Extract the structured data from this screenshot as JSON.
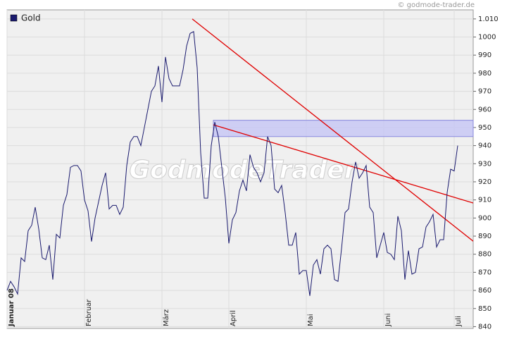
{
  "chart_data": {
    "type": "line",
    "legend": "top-left",
    "source": "© godmode-trader.de",
    "watermark": "GodmodeTrader",
    "grid": true,
    "categories": [
      "Januar 08",
      null,
      null,
      null,
      null,
      null,
      null,
      null,
      null,
      null,
      null,
      null,
      null,
      null,
      null,
      null,
      null,
      null,
      null,
      null,
      null,
      null,
      "Februar",
      null,
      null,
      null,
      null,
      null,
      null,
      null,
      null,
      null,
      null,
      null,
      null,
      null,
      null,
      null,
      null,
      null,
      null,
      null,
      null,
      null,
      "März",
      null,
      null,
      null,
      null,
      null,
      null,
      null,
      null,
      null,
      null,
      null,
      null,
      null,
      null,
      null,
      null,
      null,
      null,
      "April",
      null,
      null,
      null,
      null,
      null,
      null,
      null,
      null,
      null,
      null,
      null,
      null,
      null,
      null,
      null,
      null,
      null,
      null,
      null,
      null,
      null,
      "Mai",
      null,
      null,
      null,
      null,
      null,
      null,
      null,
      null,
      null,
      null,
      null,
      null,
      null,
      null,
      null,
      null,
      null,
      null,
      null,
      null,
      null,
      "Juni",
      null,
      null,
      null,
      null,
      null,
      null,
      null,
      null,
      null,
      null,
      null,
      null,
      null,
      null,
      null,
      null,
      null,
      null,
      null,
      "Juli",
      null
    ],
    "series": [
      {
        "name": "Gold",
        "color": "#1a1a6e",
        "values": [
          860,
          865,
          862,
          858,
          878,
          876,
          893,
          896,
          906,
          894,
          878,
          877,
          885,
          866,
          891,
          889,
          907,
          913,
          928,
          929,
          929,
          926,
          910,
          904,
          887,
          900,
          909,
          918,
          925,
          905,
          907,
          907,
          902,
          906,
          929,
          942,
          945,
          945,
          940,
          950,
          960,
          970,
          973,
          984,
          964,
          989,
          977,
          973,
          973,
          973,
          982,
          995,
          1002,
          1003,
          983,
          936,
          911,
          911,
          940,
          953,
          945,
          928,
          911,
          886,
          899,
          903,
          915,
          921,
          915,
          935,
          928,
          925,
          920,
          925,
          945,
          940,
          916,
          914,
          918,
          903,
          885,
          885,
          892,
          869,
          871,
          871,
          857,
          874,
          877,
          869,
          883,
          885,
          883,
          866,
          865,
          883,
          903,
          905,
          920,
          931,
          922,
          925,
          929,
          906,
          903,
          878,
          885,
          892,
          881,
          880,
          877,
          901,
          893,
          866,
          882,
          869,
          870,
          883,
          884,
          895,
          898,
          902,
          884,
          888,
          888,
          914,
          927,
          926,
          940
        ]
      }
    ],
    "trend_lines": [
      {
        "color": "#e00000",
        "from": [
          52.6,
          1010
        ],
        "to": [
          132.4,
          887.2
        ]
      },
      {
        "color": "#e00000",
        "from": [
          58.6,
          951.5
        ],
        "to": [
          132.4,
          908.3
        ]
      }
    ],
    "band": {
      "color": "#c8c8f4",
      "from": 58.6,
      "to": 132.4,
      "low": 945,
      "high": 954
    },
    "ylim": [
      839,
      1015
    ],
    "yticks": [
      840,
      850,
      860,
      870,
      880,
      890,
      900,
      910,
      920,
      930,
      940,
      950,
      960,
      970,
      980,
      990,
      1000,
      {
        "value": 1010,
        "label": "1.010"
      }
    ]
  }
}
